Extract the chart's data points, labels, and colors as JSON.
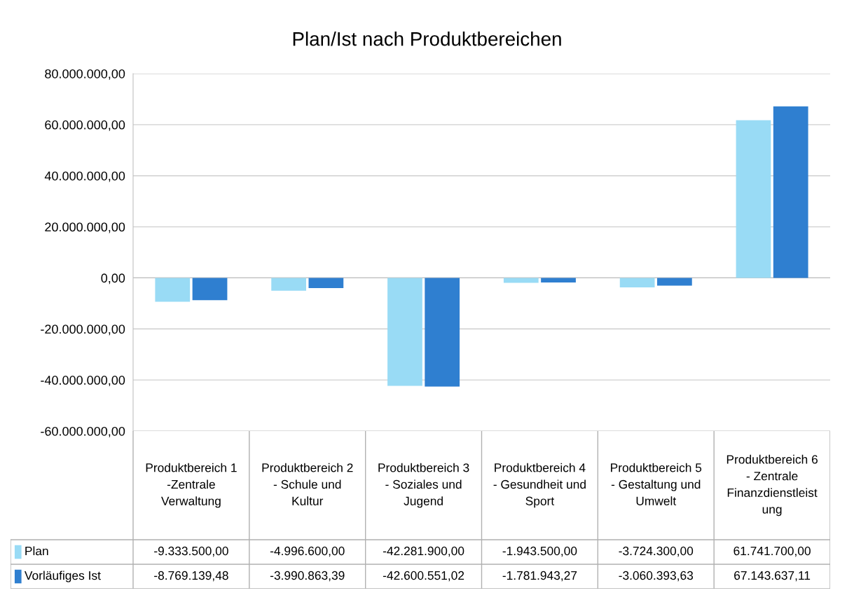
{
  "chart_data": {
    "type": "bar",
    "title": "Plan/Ist nach Produktbereichen",
    "categories": [
      "Produktbereich 1\n-Zentrale\nVerwaltung",
      "Produktbereich 2\n- Schule und\nKultur",
      "Produktbereich 3\n- Soziales und\nJugend",
      "Produktbereich 4\n- Gesundheit und\nSport",
      "Produktbereich 5\n- Gestaltung und\nUmwelt",
      "Produktbereich 6\n- Zentrale\nFinanzdienstleist\nung"
    ],
    "series": [
      {
        "name": "Plan",
        "color": "#99dbf5",
        "values": [
          -9333500.0,
          -4996600.0,
          -42281900.0,
          -1943500.0,
          -3724300.0,
          61741700.0
        ],
        "value_labels": [
          "-9.333.500,00",
          "-4.996.600,00",
          "-42.281.900,00",
          "-1.943.500,00",
          "-3.724.300,00",
          "61.741.700,00"
        ]
      },
      {
        "name": "Vorläufiges Ist",
        "color": "#2f7fd0",
        "values": [
          -8769139.48,
          -3990863.39,
          -42600551.02,
          -1781943.27,
          -3060393.63,
          67143637.11
        ],
        "value_labels": [
          "-8.769.139,48",
          "-3.990.863,39",
          "-42.600.551,02",
          "-1.781.943,27",
          "-3.060.393,63",
          "67.143.637,11"
        ]
      }
    ],
    "ylim": [
      -60000000,
      80000000
    ],
    "yticks": [
      {
        "value": -60000000,
        "label": "-60.000.000,00"
      },
      {
        "value": -40000000,
        "label": "-40.000.000,00"
      },
      {
        "value": -20000000,
        "label": "-20.000.000,00"
      },
      {
        "value": 0,
        "label": "0,00"
      },
      {
        "value": 20000000,
        "label": "20.000.000,00"
      },
      {
        "value": 40000000,
        "label": "40.000.000,00"
      },
      {
        "value": 60000000,
        "label": "60.000.000,00"
      },
      {
        "value": 80000000,
        "label": "80.000.000,00"
      }
    ],
    "grid": "y",
    "legend": "bottom"
  }
}
